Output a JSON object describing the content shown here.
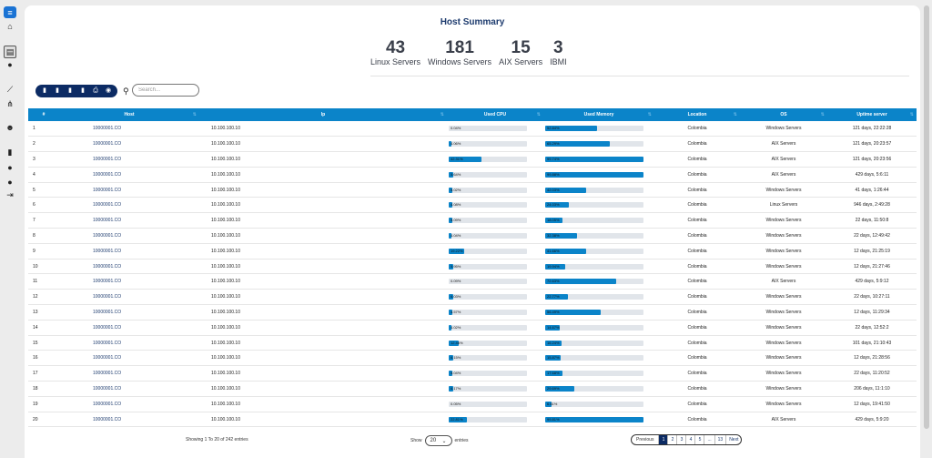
{
  "header": {
    "title": "Host Summary"
  },
  "stats": [
    {
      "value": "43",
      "label": "Linux Servers"
    },
    {
      "value": "181",
      "label": "Windows Servers"
    },
    {
      "value": "15",
      "label": "AIX Servers"
    },
    {
      "value": "3",
      "label": "IBMI"
    }
  ],
  "search": {
    "placeholder": "Search..."
  },
  "toolbar": {
    "buttons": [
      "copy-icon",
      "csv-icon",
      "excel-icon",
      "pdf-icon",
      "print-icon",
      "column-visibility-icon"
    ]
  },
  "table": {
    "columns": [
      "#",
      "Host",
      "Ip",
      "Used CPU",
      "Used Memory",
      "Location",
      "OS",
      "Uptime server"
    ],
    "rows": [
      {
        "n": "1",
        "host": "10000001.CO",
        "ip": "10.100.100.10",
        "cpu": 0.0004,
        "cpu_label": "0.04%",
        "mem": 0.5284,
        "mem_label": "52.84%",
        "location": "Colombia",
        "os": "Windows Servers",
        "uptime": "121 days, 22:22:28"
      },
      {
        "n": "2",
        "host": "10000001.CO",
        "ip": "10.100.100.10",
        "cpu": 0.0406,
        "cpu_label": "4.06%",
        "mem": 0.6529,
        "mem_label": "65.29%",
        "location": "Colombia",
        "os": "AIX Servers",
        "uptime": "121 days, 20:23:57"
      },
      {
        "n": "3",
        "host": "10000001.CO",
        "ip": "10.100.100.10",
        "cpu": 0.4231,
        "cpu_label": "42.31%",
        "mem": 0.9974,
        "mem_label": "99.74%",
        "location": "Colombia",
        "os": "AIX Servers",
        "uptime": "121 days, 20:23:56"
      },
      {
        "n": "4",
        "host": "10000001.CO",
        "ip": "10.100.100.10",
        "cpu": 0.0564,
        "cpu_label": "5.64%",
        "mem": 0.9988,
        "mem_label": "99.88%",
        "location": "Colombia",
        "os": "AIX Servers",
        "uptime": "429 days, 5:6:11"
      },
      {
        "n": "5",
        "host": "10000001.CO",
        "ip": "10.100.100.10",
        "cpu": 0.0502,
        "cpu_label": "5.02%",
        "mem": 0.4203,
        "mem_label": "42.03%",
        "location": "Colombia",
        "os": "Windows Servers",
        "uptime": "41 days, 1:26:44"
      },
      {
        "n": "6",
        "host": "10000001.CO",
        "ip": "10.100.100.10",
        "cpu": 0.0408,
        "cpu_label": "4.08%",
        "mem": 0.2403,
        "mem_label": "24.03%",
        "location": "Colombia",
        "os": "Linux Servers",
        "uptime": "946 days, 2:49:28"
      },
      {
        "n": "7",
        "host": "10000001.CO",
        "ip": "10.100.100.10",
        "cpu": 0.0509,
        "cpu_label": "5.09%",
        "mem": 0.1805,
        "mem_label": "18.05%",
        "location": "Colombia",
        "os": "Windows Servers",
        "uptime": "22 days, 11:50:8"
      },
      {
        "n": "8",
        "host": "10000001.CO",
        "ip": "10.100.100.10",
        "cpu": 0.0404,
        "cpu_label": "4.04%",
        "mem": 0.3238,
        "mem_label": "32.38%",
        "location": "Colombia",
        "os": "Windows Servers",
        "uptime": "22 days, 12:49:42"
      },
      {
        "n": "9",
        "host": "10000001.CO",
        "ip": "10.100.100.10",
        "cpu": 0.1922,
        "cpu_label": "19.22%",
        "mem": 0.4166,
        "mem_label": "41.66%",
        "location": "Colombia",
        "os": "Windows Servers",
        "uptime": "12 days, 21:25:19"
      },
      {
        "n": "10",
        "host": "10000001.CO",
        "ip": "10.100.100.10",
        "cpu": 0.0595,
        "cpu_label": "5.95%",
        "mem": 0.1994,
        "mem_label": "19.94%",
        "location": "Colombia",
        "os": "Windows Servers",
        "uptime": "12 days, 21:27:46"
      },
      {
        "n": "11",
        "host": "10000001.CO",
        "ip": "10.100.100.10",
        "cpu": 0.0009,
        "cpu_label": "0.09%",
        "mem": 0.7263,
        "mem_label": "72.63%",
        "location": "Colombia",
        "os": "AIX Servers",
        "uptime": "429 days, 5:9:12"
      },
      {
        "n": "12",
        "host": "10000001.CO",
        "ip": "10.100.100.10",
        "cpu": 0.0603,
        "cpu_label": "6.03%",
        "mem": 0.2277,
        "mem_label": "22.77%",
        "location": "Colombia",
        "os": "Windows Servers",
        "uptime": "22 days, 10:27:11"
      },
      {
        "n": "13",
        "host": "10000001.CO",
        "ip": "10.100.100.10",
        "cpu": 0.0457,
        "cpu_label": "4.57%",
        "mem": 0.5649,
        "mem_label": "56.49%",
        "location": "Colombia",
        "os": "Windows Servers",
        "uptime": "12 days, 11:29:34"
      },
      {
        "n": "14",
        "host": "10000001.CO",
        "ip": "10.100.100.10",
        "cpu": 0.0402,
        "cpu_label": "4.02%",
        "mem": 0.1467,
        "mem_label": "14.67%",
        "location": "Colombia",
        "os": "Windows Servers",
        "uptime": "22 days, 12:52:2"
      },
      {
        "n": "15",
        "host": "10000001.CO",
        "ip": "10.100.100.10",
        "cpu": 0.1246,
        "cpu_label": "12.46%",
        "mem": 0.1624,
        "mem_label": "16.24%",
        "location": "Colombia",
        "os": "Windows Servers",
        "uptime": "101 days, 21:10:43"
      },
      {
        "n": "16",
        "host": "10000001.CO",
        "ip": "10.100.100.10",
        "cpu": 0.0615,
        "cpu_label": "6.15%",
        "mem": 0.1587,
        "mem_label": "15.87%",
        "location": "Colombia",
        "os": "Windows Servers",
        "uptime": "12 days, 21:28:56"
      },
      {
        "n": "17",
        "host": "10000001.CO",
        "ip": "10.100.100.10",
        "cpu": 0.0504,
        "cpu_label": "5.04%",
        "mem": 0.1768,
        "mem_label": "17.68%",
        "location": "Colombia",
        "os": "Windows Servers",
        "uptime": "22 days, 11:20:52"
      },
      {
        "n": "18",
        "host": "10000001.CO",
        "ip": "10.100.100.10",
        "cpu": 0.0617,
        "cpu_label": "6.17%",
        "mem": 0.2969,
        "mem_label": "29.69%",
        "location": "Colombia",
        "os": "Windows Servers",
        "uptime": "206 days, 11:1:10"
      },
      {
        "n": "19",
        "host": "10000001.CO",
        "ip": "10.100.100.10",
        "cpu": 0.0005,
        "cpu_label": "0.05%",
        "mem": 0.0661,
        "mem_label": "6.61%",
        "location": "Colombia",
        "os": "Windows Servers",
        "uptime": "12 days, 19:41:50"
      },
      {
        "n": "20",
        "host": "10000001.CO",
        "ip": "10.100.100.10",
        "cpu": 0.2281,
        "cpu_label": "22.81%",
        "mem": 0.9981,
        "mem_label": "99.81%",
        "location": "Colombia",
        "os": "AIX Servers",
        "uptime": "429 days, 5:9:20"
      }
    ]
  },
  "footer": {
    "info": "Showing 1 To 20 of 242 entries",
    "show_label": "Show",
    "entries_label": "entries",
    "page_size": "20",
    "pages": [
      "Previous",
      "1",
      "2",
      "3",
      "4",
      "5",
      "...",
      "13",
      "Next"
    ],
    "active_page": "1"
  },
  "colors": {
    "accent": "#0b84c9",
    "navy": "#0c2b64",
    "title": "#1d3b6e"
  }
}
